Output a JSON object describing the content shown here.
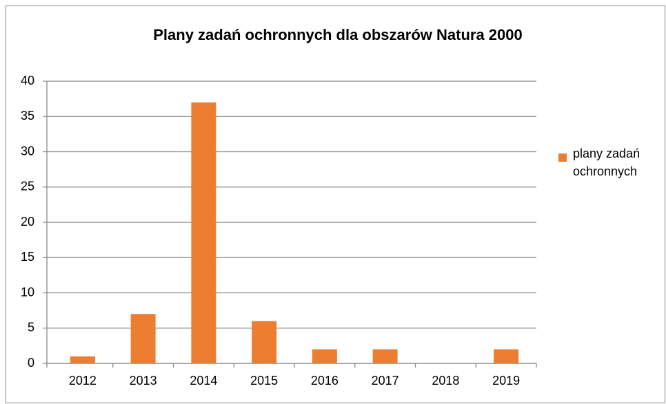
{
  "chart_data": {
    "type": "bar",
    "title": "Plany  zadań ochronnych dla obszarów Natura 2000",
    "categories": [
      "2012",
      "2013",
      "2014",
      "2015",
      "2016",
      "2017",
      "2018",
      "2019"
    ],
    "series": [
      {
        "name": "plany zadań ochronnych",
        "color": "#ed7d31",
        "values": [
          1,
          7,
          37,
          6,
          2,
          2,
          0,
          2
        ]
      }
    ],
    "ylim": [
      0,
      40
    ],
    "yticks": [
      0,
      5,
      10,
      15,
      20,
      25,
      30,
      35,
      40
    ],
    "grid": true,
    "legend": "right"
  }
}
